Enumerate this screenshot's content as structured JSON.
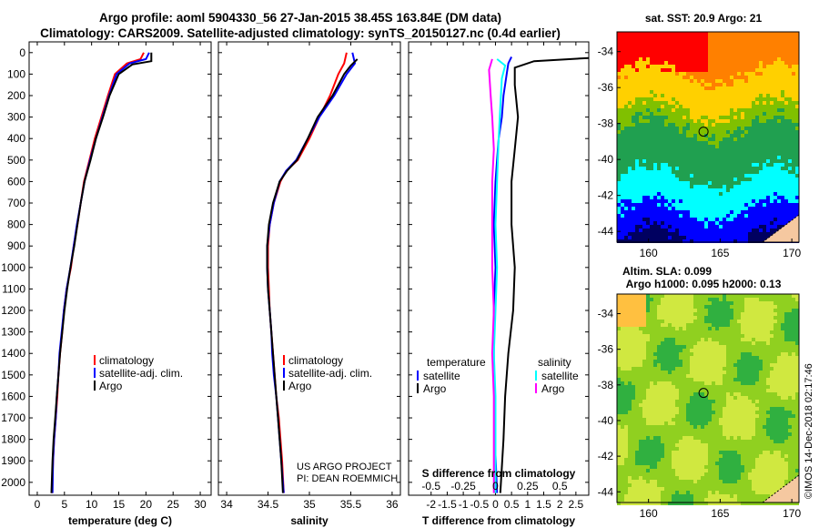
{
  "header": {
    "title_line1": "Argo profile: aoml 5904330_56 27-Jan-2015 38.45S 163.84E (DM data)",
    "title_line2": "Climatology: CARS2009. Satellite-adjusted climatology: synTS_20150127.nc (0.4d earlier)"
  },
  "colors": {
    "climatology": "#ff0000",
    "satellite": "#0000ff",
    "argo": "#000000",
    "sat_salinity": "#00ffff",
    "argo_salinity": "#ff00ff"
  },
  "depth_ticks": [
    "0",
    "100",
    "200",
    "300",
    "400",
    "500",
    "600",
    "700",
    "800",
    "900",
    "1000",
    "1100",
    "1200",
    "1300",
    "1400",
    "1500",
    "1600",
    "1700",
    "1800",
    "1900",
    "2000"
  ],
  "chart_data": [
    {
      "type": "line",
      "xlabel": "temperature (deg C)",
      "xticks": [
        "0",
        "5",
        "10",
        "15",
        "20",
        "25",
        "30"
      ],
      "xlim": [
        -1.5,
        32
      ],
      "ylim": [
        -50,
        2060
      ],
      "legend": [
        "climatology",
        "satellite-adj. clim.",
        "Argo"
      ],
      "series": [
        {
          "name": "climatology",
          "points": [
            [
              19.6,
              0
            ],
            [
              19.0,
              30
            ],
            [
              16.5,
              50
            ],
            [
              14.3,
              100
            ],
            [
              13.0,
              200
            ],
            [
              11.8,
              300
            ],
            [
              10.6,
              400
            ],
            [
              9.6,
              500
            ],
            [
              8.6,
              600
            ],
            [
              8.0,
              700
            ],
            [
              7.4,
              800
            ],
            [
              6.7,
              900
            ],
            [
              6.2,
              1000
            ],
            [
              5.4,
              1100
            ],
            [
              4.9,
              1200
            ],
            [
              4.6,
              1300
            ],
            [
              4.2,
              1400
            ],
            [
              3.9,
              1500
            ],
            [
              3.7,
              1600
            ],
            [
              3.4,
              1700
            ],
            [
              3.1,
              1800
            ],
            [
              2.9,
              1900
            ],
            [
              2.7,
              2050
            ]
          ]
        },
        {
          "name": "satellite-adj. clim.",
          "points": [
            [
              20.6,
              0
            ],
            [
              20.0,
              30
            ],
            [
              17.0,
              50
            ],
            [
              14.6,
              100
            ],
            [
              13.2,
              200
            ],
            [
              12.0,
              300
            ],
            [
              10.8,
              400
            ],
            [
              9.7,
              500
            ],
            [
              8.7,
              600
            ],
            [
              8.0,
              700
            ],
            [
              7.3,
              800
            ],
            [
              6.7,
              900
            ],
            [
              6.1,
              1000
            ],
            [
              5.4,
              1100
            ],
            [
              4.9,
              1200
            ],
            [
              4.5,
              1300
            ],
            [
              4.1,
              1400
            ],
            [
              3.9,
              1500
            ],
            [
              3.6,
              1600
            ],
            [
              3.4,
              1700
            ],
            [
              3.1,
              1800
            ],
            [
              2.9,
              1900
            ],
            [
              2.8,
              2050
            ]
          ]
        },
        {
          "name": "Argo",
          "points": [
            [
              21.0,
              0
            ],
            [
              21.0,
              40
            ],
            [
              17.5,
              55
            ],
            [
              15.0,
              100
            ],
            [
              13.3,
              200
            ],
            [
              12.1,
              300
            ],
            [
              10.8,
              400
            ],
            [
              9.8,
              500
            ],
            [
              8.7,
              600
            ],
            [
              8.0,
              700
            ],
            [
              7.4,
              800
            ],
            [
              6.8,
              900
            ],
            [
              6.1,
              1000
            ],
            [
              5.5,
              1100
            ],
            [
              5.0,
              1200
            ],
            [
              4.6,
              1300
            ],
            [
              4.2,
              1400
            ],
            [
              3.9,
              1500
            ],
            [
              3.6,
              1600
            ],
            [
              3.3,
              1700
            ],
            [
              3.0,
              1800
            ],
            [
              2.8,
              1900
            ],
            [
              2.6,
              2050
            ]
          ]
        }
      ]
    },
    {
      "type": "line",
      "xlabel": "salinity",
      "xticks": [
        "34",
        "34.5",
        "35",
        "35.5",
        "36"
      ],
      "xlim": [
        33.9,
        36.1
      ],
      "ylim": [
        -50,
        2060
      ],
      "legend": [
        "climatology",
        "satellite-adj. clim.",
        "Argo"
      ],
      "credit": [
        "US ARGO PROJECT",
        "PI: DEAN ROEMMICH"
      ],
      "series": [
        {
          "name": "climatology",
          "points": [
            [
              35.45,
              0
            ],
            [
              35.42,
              50
            ],
            [
              35.35,
              100
            ],
            [
              35.25,
              200
            ],
            [
              35.12,
              300
            ],
            [
              35.0,
              400
            ],
            [
              34.86,
              500
            ],
            [
              34.72,
              550
            ],
            [
              34.65,
              600
            ],
            [
              34.57,
              700
            ],
            [
              34.52,
              800
            ],
            [
              34.5,
              900
            ],
            [
              34.5,
              1000
            ],
            [
              34.51,
              1100
            ],
            [
              34.52,
              1200
            ],
            [
              34.54,
              1300
            ],
            [
              34.56,
              1400
            ],
            [
              34.58,
              1500
            ],
            [
              34.6,
              1600
            ],
            [
              34.63,
              1700
            ],
            [
              34.65,
              1800
            ],
            [
              34.67,
              1900
            ],
            [
              34.69,
              2050
            ]
          ]
        },
        {
          "name": "satellite-adj. clim.",
          "points": [
            [
              35.52,
              0
            ],
            [
              35.55,
              50
            ],
            [
              35.45,
              100
            ],
            [
              35.3,
              200
            ],
            [
              35.12,
              300
            ],
            [
              34.98,
              400
            ],
            [
              34.84,
              500
            ],
            [
              34.72,
              550
            ],
            [
              34.64,
              600
            ],
            [
              34.57,
              700
            ],
            [
              34.52,
              800
            ],
            [
              34.49,
              900
            ],
            [
              34.49,
              1000
            ],
            [
              34.5,
              1100
            ],
            [
              34.52,
              1200
            ],
            [
              34.54,
              1300
            ],
            [
              34.55,
              1400
            ],
            [
              34.57,
              1500
            ],
            [
              34.6,
              1600
            ],
            [
              34.62,
              1700
            ],
            [
              34.64,
              1800
            ],
            [
              34.66,
              1900
            ],
            [
              34.69,
              2050
            ]
          ]
        },
        {
          "name": "Argo",
          "points": [
            [
              35.58,
              30
            ],
            [
              35.5,
              60
            ],
            [
              35.42,
              100
            ],
            [
              35.28,
              200
            ],
            [
              35.1,
              300
            ],
            [
              34.98,
              400
            ],
            [
              34.85,
              500
            ],
            [
              34.73,
              550
            ],
            [
              34.64,
              600
            ],
            [
              34.56,
              700
            ],
            [
              34.51,
              800
            ],
            [
              34.49,
              900
            ],
            [
              34.49,
              1000
            ],
            [
              34.5,
              1100
            ],
            [
              34.52,
              1200
            ],
            [
              34.54,
              1300
            ],
            [
              34.56,
              1400
            ],
            [
              34.58,
              1500
            ],
            [
              34.6,
              1600
            ],
            [
              34.62,
              1700
            ],
            [
              34.64,
              1800
            ],
            [
              34.66,
              1900
            ],
            [
              34.68,
              2050
            ]
          ]
        }
      ]
    },
    {
      "type": "line",
      "xlabel": "T difference from climatology",
      "xlabel_top": "S difference from climatology",
      "xticks": [
        "-2",
        "-1.5",
        "-1",
        "-0.5",
        "0",
        "0.5",
        "1",
        "1.5",
        "2",
        "2.5"
      ],
      "xticks_top": [
        "-0.5",
        "-0.25",
        "0",
        "0.25",
        "0.5"
      ],
      "xlim": [
        -2.7,
        2.9
      ],
      "ylim": [
        -50,
        2060
      ],
      "legend_left_title": "temperature",
      "legend_right_title": "salinity",
      "legend_left": [
        "satellite",
        "Argo"
      ],
      "legend_right": [
        "satellite",
        "Argo"
      ],
      "series": [
        {
          "name": "temperature satellite",
          "points": [
            [
              0.5,
              20
            ],
            [
              0.4,
              50
            ],
            [
              0.35,
              100
            ],
            [
              0.25,
              200
            ],
            [
              0.2,
              300
            ],
            [
              0.1,
              400
            ],
            [
              0.05,
              500
            ],
            [
              0.0,
              600
            ],
            [
              -0.05,
              800
            ],
            [
              0.0,
              1000
            ],
            [
              -0.05,
              1200
            ],
            [
              -0.05,
              1500
            ],
            [
              -0.02,
              1800
            ],
            [
              0.05,
              2050
            ]
          ]
        },
        {
          "name": "temperature Argo",
          "points": [
            [
              2.9,
              25
            ],
            [
              1.2,
              40
            ],
            [
              0.6,
              70
            ],
            [
              0.6,
              150
            ],
            [
              0.7,
              300
            ],
            [
              0.6,
              450
            ],
            [
              0.5,
              600
            ],
            [
              0.5,
              800
            ],
            [
              0.6,
              1000
            ],
            [
              0.55,
              1200
            ],
            [
              0.4,
              1400
            ],
            [
              0.3,
              1600
            ],
            [
              0.25,
              1800
            ],
            [
              0.15,
              2050
            ]
          ]
        },
        {
          "name": "salinity satellite",
          "points": [
            [
              0.05,
              30
            ],
            [
              0.3,
              60
            ],
            [
              0.2,
              120
            ],
            [
              0.15,
              250
            ],
            [
              0.1,
              400
            ],
            [
              0.05,
              600
            ],
            [
              0.0,
              800
            ],
            [
              0.05,
              1000
            ],
            [
              0.0,
              1200
            ],
            [
              -0.05,
              1400
            ],
            [
              0.0,
              1600
            ],
            [
              0.0,
              1800
            ],
            [
              0.0,
              2050
            ]
          ]
        },
        {
          "name": "salinity Argo",
          "points": [
            [
              -0.1,
              30
            ],
            [
              -0.2,
              80
            ],
            [
              -0.15,
              200
            ],
            [
              -0.1,
              300
            ],
            [
              -0.05,
              450
            ],
            [
              -0.1,
              600
            ],
            [
              -0.1,
              800
            ],
            [
              -0.1,
              1000
            ],
            [
              -0.05,
              1200
            ],
            [
              -0.1,
              1400
            ],
            [
              -0.05,
              1600
            ],
            [
              -0.05,
              1800
            ],
            [
              -0.05,
              2050
            ]
          ]
        }
      ]
    }
  ],
  "maps": [
    {
      "title": "sat. SST: 20.9 Argo: 21",
      "xticks": [
        "160",
        "165",
        "170"
      ],
      "yticks": [
        "-34",
        "-36",
        "-38",
        "-40",
        "-42",
        "-44"
      ],
      "marker": {
        "lon": 163.84,
        "lat": -38.45
      }
    },
    {
      "title_line1": "Altim. SLA: 0.099",
      "title_line2": "Argo h1000: 0.095 h2000: 0.13",
      "xticks": [
        "160",
        "165",
        "170"
      ],
      "yticks": [
        "-34",
        "-36",
        "-38",
        "-40",
        "-42",
        "-44"
      ],
      "marker": {
        "lon": 163.84,
        "lat": -38.45
      }
    }
  ],
  "footer": {
    "stamp": "©IMOS 14-Dec-2018 02:17:46"
  }
}
